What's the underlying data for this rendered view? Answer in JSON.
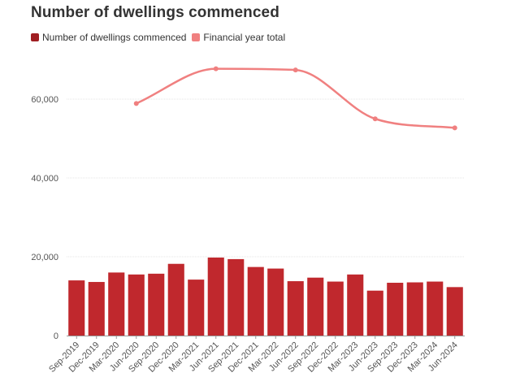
{
  "chart_data": {
    "type": "bar",
    "title": "Number of dwellings commenced",
    "categories": [
      "Sep-2019",
      "Dec-2019",
      "Mar-2020",
      "Jun-2020",
      "Sep-2020",
      "Dec-2020",
      "Mar-2021",
      "Jun-2021",
      "Sep-2021",
      "Dec-2021",
      "Mar-2022",
      "Jun-2022",
      "Sep-2022",
      "Dec-2022",
      "Mar-2023",
      "Jun-2023",
      "Sep-2023",
      "Dec-2023",
      "Mar-2024",
      "Jun-2024"
    ],
    "series": [
      {
        "name": "Number of dwellings commenced",
        "type": "bar",
        "color": "#c0282d",
        "values": [
          14000,
          13600,
          16000,
          15500,
          15700,
          18200,
          14200,
          19800,
          19400,
          17400,
          17000,
          13800,
          14700,
          13700,
          15500,
          11400,
          13400,
          13500,
          13700,
          12300
        ]
      },
      {
        "name": "Financial year total",
        "type": "line",
        "color": "#f08080",
        "values": [
          null,
          null,
          null,
          58900,
          null,
          null,
          null,
          67700,
          null,
          null,
          null,
          67400,
          null,
          null,
          null,
          55000,
          null,
          null,
          null,
          52700
        ]
      }
    ],
    "yticks": [
      0,
      20000,
      40000,
      60000
    ],
    "ytick_labels": [
      "0",
      "20,000",
      "40,000",
      "60,000"
    ],
    "ylim": [
      0,
      70000
    ],
    "xlabel": "",
    "ylabel": "",
    "grid": true,
    "legend_position": "top-left"
  }
}
